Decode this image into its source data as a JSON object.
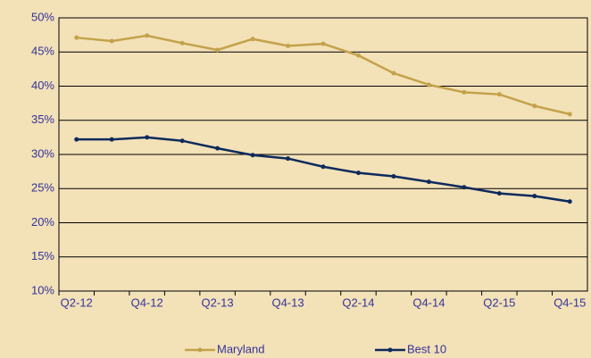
{
  "chart_data": {
    "type": "line",
    "categories": [
      "Q2-12",
      null,
      "Q4-12",
      null,
      "Q2-13",
      null,
      "Q4-13",
      null,
      "Q2-14",
      null,
      "Q4-14",
      null,
      "Q2-15",
      null,
      "Q4-15"
    ],
    "series": [
      {
        "name": "Maryland",
        "color": "#c4a24a",
        "values": [
          47.1,
          46.6,
          47.4,
          46.3,
          45.3,
          46.9,
          45.9,
          46.2,
          44.5,
          41.9,
          40.2,
          39.1,
          38.8,
          37.1,
          35.9
        ]
      },
      {
        "name": "Best 10",
        "color": "#0d2a5c",
        "values": [
          32.2,
          32.2,
          32.5,
          32.0,
          30.9,
          29.9,
          29.4,
          28.2,
          27.3,
          26.8,
          26.0,
          25.2,
          24.3,
          23.9,
          23.1
        ]
      }
    ],
    "ylim": [
      10,
      50
    ],
    "yticks": [
      {
        "value": 10,
        "label": "10%"
      },
      {
        "value": 15,
        "label": "15%"
      },
      {
        "value": 20,
        "label": "20%"
      },
      {
        "value": 25,
        "label": "25%"
      },
      {
        "value": 30,
        "label": "30%"
      },
      {
        "value": 35,
        "label": "35%"
      },
      {
        "value": 40,
        "label": "40%"
      },
      {
        "value": 45,
        "label": "45%"
      },
      {
        "value": 50,
        "label": "50%"
      }
    ],
    "grid": true
  }
}
